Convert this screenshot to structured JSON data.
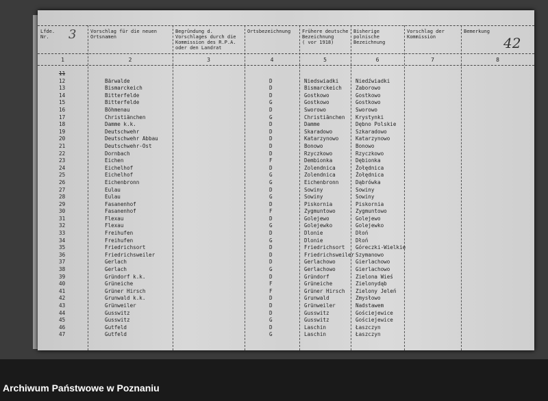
{
  "document": {
    "sheet_number": "42",
    "lfd_mark": "3",
    "header": {
      "columns": [
        {
          "label": "Lfde.\nNr.",
          "number": "1"
        },
        {
          "label": "Vorschlag für die neuen\nOrtsnamen",
          "number": "2"
        },
        {
          "label": "Begründung d.\nVorschlages durch die\nKommission des R.P.A.\noder den Landrat",
          "number": "3"
        },
        {
          "label": "Ortsbezeichnung",
          "number": "4"
        },
        {
          "label": "Frühere deutsche\nBezeichnung\n( vor 1918)",
          "number": "5"
        },
        {
          "label": "Bisherige\npolnische\nBezeichnung",
          "number": "6"
        },
        {
          "label": "Vorschlag der\nKommission",
          "number": "7"
        },
        {
          "label": "Bemerkung",
          "number": "8"
        }
      ]
    },
    "crossed_row": "11",
    "rows": [
      {
        "nr": "12",
        "name": "Bärwalde",
        "type": "D",
        "german": "Niedswiadki",
        "polish": "Niedźwiadki"
      },
      {
        "nr": "13",
        "name": "Bismarckeich",
        "type": "D",
        "german": "Bismarckeich",
        "polish": "Zaborowo"
      },
      {
        "nr": "14",
        "name": "Bitterfelde",
        "type": "D",
        "german": "Gostkowo",
        "polish": "Gostkowo"
      },
      {
        "nr": "15",
        "name": "Bitterfelde",
        "type": "G",
        "german": "Gostkowo",
        "polish": "Gostkowo"
      },
      {
        "nr": "16",
        "name": "Böhmenau",
        "type": "D",
        "german": "Sworowo",
        "polish": "Sworowo"
      },
      {
        "nr": "17",
        "name": "Christiänchen",
        "type": "G",
        "german": "Christiänchen",
        "polish": "Krystynki"
      },
      {
        "nr": "18",
        "name": "Damme k.k.",
        "type": "D",
        "german": "Damme",
        "polish": "Dębno Polskie"
      },
      {
        "nr": "19",
        "name": "Deutschwehr",
        "type": "D",
        "german": "Skaradowo",
        "polish": "Szkaradowo"
      },
      {
        "nr": "20",
        "name": "Deutschwehr Abbau",
        "type": "D",
        "german": "Katarzynowo",
        "polish": "Katarzynowo"
      },
      {
        "nr": "21",
        "name": "Deutschwehr-Ost",
        "type": "D",
        "german": "Bonowo",
        "polish": "Bonowo"
      },
      {
        "nr": "22",
        "name": "Dornbach",
        "type": "D",
        "german": "Rzyczkowo",
        "polish": "Rzyczkowo"
      },
      {
        "nr": "23",
        "name": "Eichen",
        "type": "F",
        "german": "Dembionka",
        "polish": "Dębionka"
      },
      {
        "nr": "24",
        "name": "Eichelhof",
        "type": "D",
        "german": "Zolendnica",
        "polish": "Żołędnica"
      },
      {
        "nr": "25",
        "name": "Eichelhof",
        "type": "G",
        "german": "Zolendnica",
        "polish": "Żołędnica"
      },
      {
        "nr": "26",
        "name": "Eichenbronn",
        "type": "G",
        "german": "Eichenbronn",
        "polish": "Dąbrówka"
      },
      {
        "nr": "27",
        "name": "Eulau",
        "type": "D",
        "german": "Sowiny",
        "polish": "Sowiny"
      },
      {
        "nr": "28",
        "name": "Eulau",
        "type": "G",
        "german": "Sowiny",
        "polish": "Sowiny"
      },
      {
        "nr": "29",
        "name": "Fasanenhof",
        "type": "D",
        "german": "Piskornia",
        "polish": "Piskornia"
      },
      {
        "nr": "30",
        "name": "Fasanenhof",
        "type": "F",
        "german": "Zygmuntowo",
        "polish": "Zygmuntowo"
      },
      {
        "nr": "31",
        "name": "Flexau",
        "type": "D",
        "german": "Golejewo",
        "polish": "Golejewo"
      },
      {
        "nr": "32",
        "name": "Flexau",
        "type": "G",
        "german": "Golejewko",
        "polish": "Golejewko"
      },
      {
        "nr": "33",
        "name": "Freihufen",
        "type": "D",
        "german": "Dlonie",
        "polish": "Dłoń"
      },
      {
        "nr": "34",
        "name": "Freihufen",
        "type": "G",
        "german": "Dlonie",
        "polish": "Dłoń"
      },
      {
        "nr": "35",
        "name": "Friedrichsort",
        "type": "D",
        "german": "Friedrichsort",
        "polish": "Góreczki-Wielkie"
      },
      {
        "nr": "36",
        "name": "Friedrichsweiler",
        "type": "D",
        "german": "Friedrichsweiler",
        "polish": "Szymanowo"
      },
      {
        "nr": "37",
        "name": "Gerlach",
        "type": "D",
        "german": "Gerlachowo",
        "polish": "Gierlachowo"
      },
      {
        "nr": "38",
        "name": "Gerlach",
        "type": "G",
        "german": "Gerlachowo",
        "polish": "Gierlachowo"
      },
      {
        "nr": "39",
        "name": "Gründorf k.k.",
        "type": "D",
        "german": "Gründorf",
        "polish": "Zielona Wieś"
      },
      {
        "nr": "40",
        "name": "Grüneiche",
        "type": "F",
        "german": "Grüneiche",
        "polish": "Zielonydąb"
      },
      {
        "nr": "41",
        "name": "Grüner Hirsch",
        "type": "F",
        "german": "Grüner Hirsch",
        "polish": "Zielony Jeleń"
      },
      {
        "nr": "42",
        "name": "Grunwald k.k.",
        "type": "D",
        "german": "Grunwald",
        "polish": "Zmysłowo"
      },
      {
        "nr": "43",
        "name": "Grünweiler",
        "type": "D",
        "german": "Grünweiler",
        "polish": "Nadstawem"
      },
      {
        "nr": "44",
        "name": "Gusswitz",
        "type": "D",
        "german": "Gusswitz",
        "polish": "Gościejewice"
      },
      {
        "nr": "45",
        "name": "Gusswitz",
        "type": "G",
        "german": "Gusswitz",
        "polish": "Gościejewice"
      },
      {
        "nr": "46",
        "name": "Gutfeld",
        "type": "D",
        "german": "Laschin",
        "polish": "Łaszczyn"
      },
      {
        "nr": "47",
        "name": "Gutfeld",
        "type": "G",
        "german": "Laschin",
        "polish": "Łaszczyn"
      }
    ]
  },
  "footer": {
    "caption": "Archiwum Państwowe w Poznaniu"
  }
}
